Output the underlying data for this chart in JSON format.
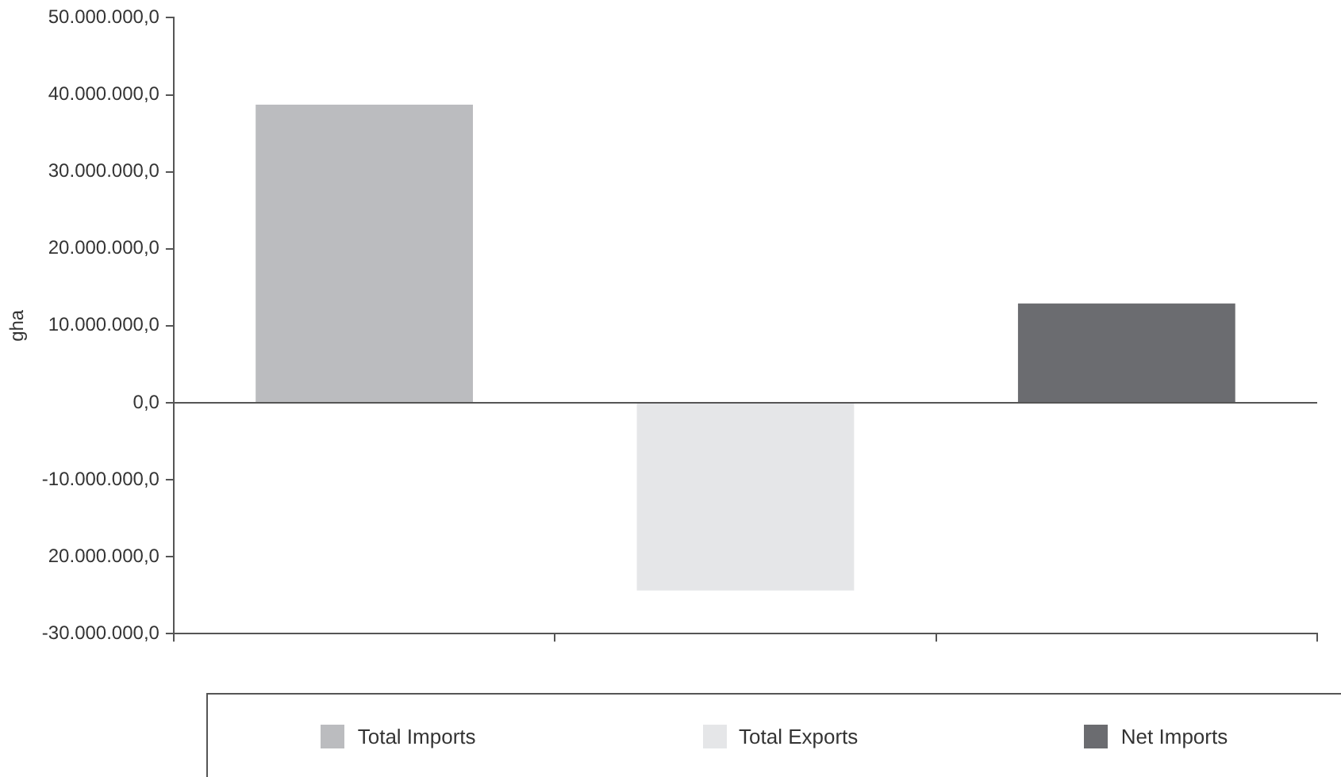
{
  "chart_data": {
    "type": "bar",
    "ylabel": "gha",
    "categories": [
      null,
      null,
      null
    ],
    "series": [
      {
        "name": "Total Imports",
        "color": "#bbbcbf",
        "values": [
          38700000,
          null,
          null
        ]
      },
      {
        "name": "Total Exports",
        "color": "#e5e6e8",
        "values": [
          null,
          -24400000,
          null
        ]
      },
      {
        "name": "Net Imports",
        "color": "#6b6c70",
        "values": [
          null,
          null,
          12900000
        ]
      }
    ],
    "ylim": [
      -30000000,
      50000000
    ],
    "yticks": [
      {
        "value": -30000000,
        "label": "-30.000.000,0"
      },
      {
        "value": -20000000,
        "label": "20.000.000,0"
      },
      {
        "value": -10000000,
        "label": "-10.000.000,0"
      },
      {
        "value": 0,
        "label": "0,0"
      },
      {
        "value": 10000000,
        "label": "10.000.000,0"
      },
      {
        "value": 20000000,
        "label": "20.000.000,0"
      },
      {
        "value": 30000000,
        "label": "30.000.000,0"
      },
      {
        "value": 40000000,
        "label": "40.000.000,0"
      },
      {
        "value": 50000000,
        "label": "50.000.000,0"
      }
    ],
    "ref_lines": [
      {
        "axis": "y",
        "value": 0,
        "color": "#555555"
      }
    ],
    "grid": false,
    "legend": "bottom"
  }
}
